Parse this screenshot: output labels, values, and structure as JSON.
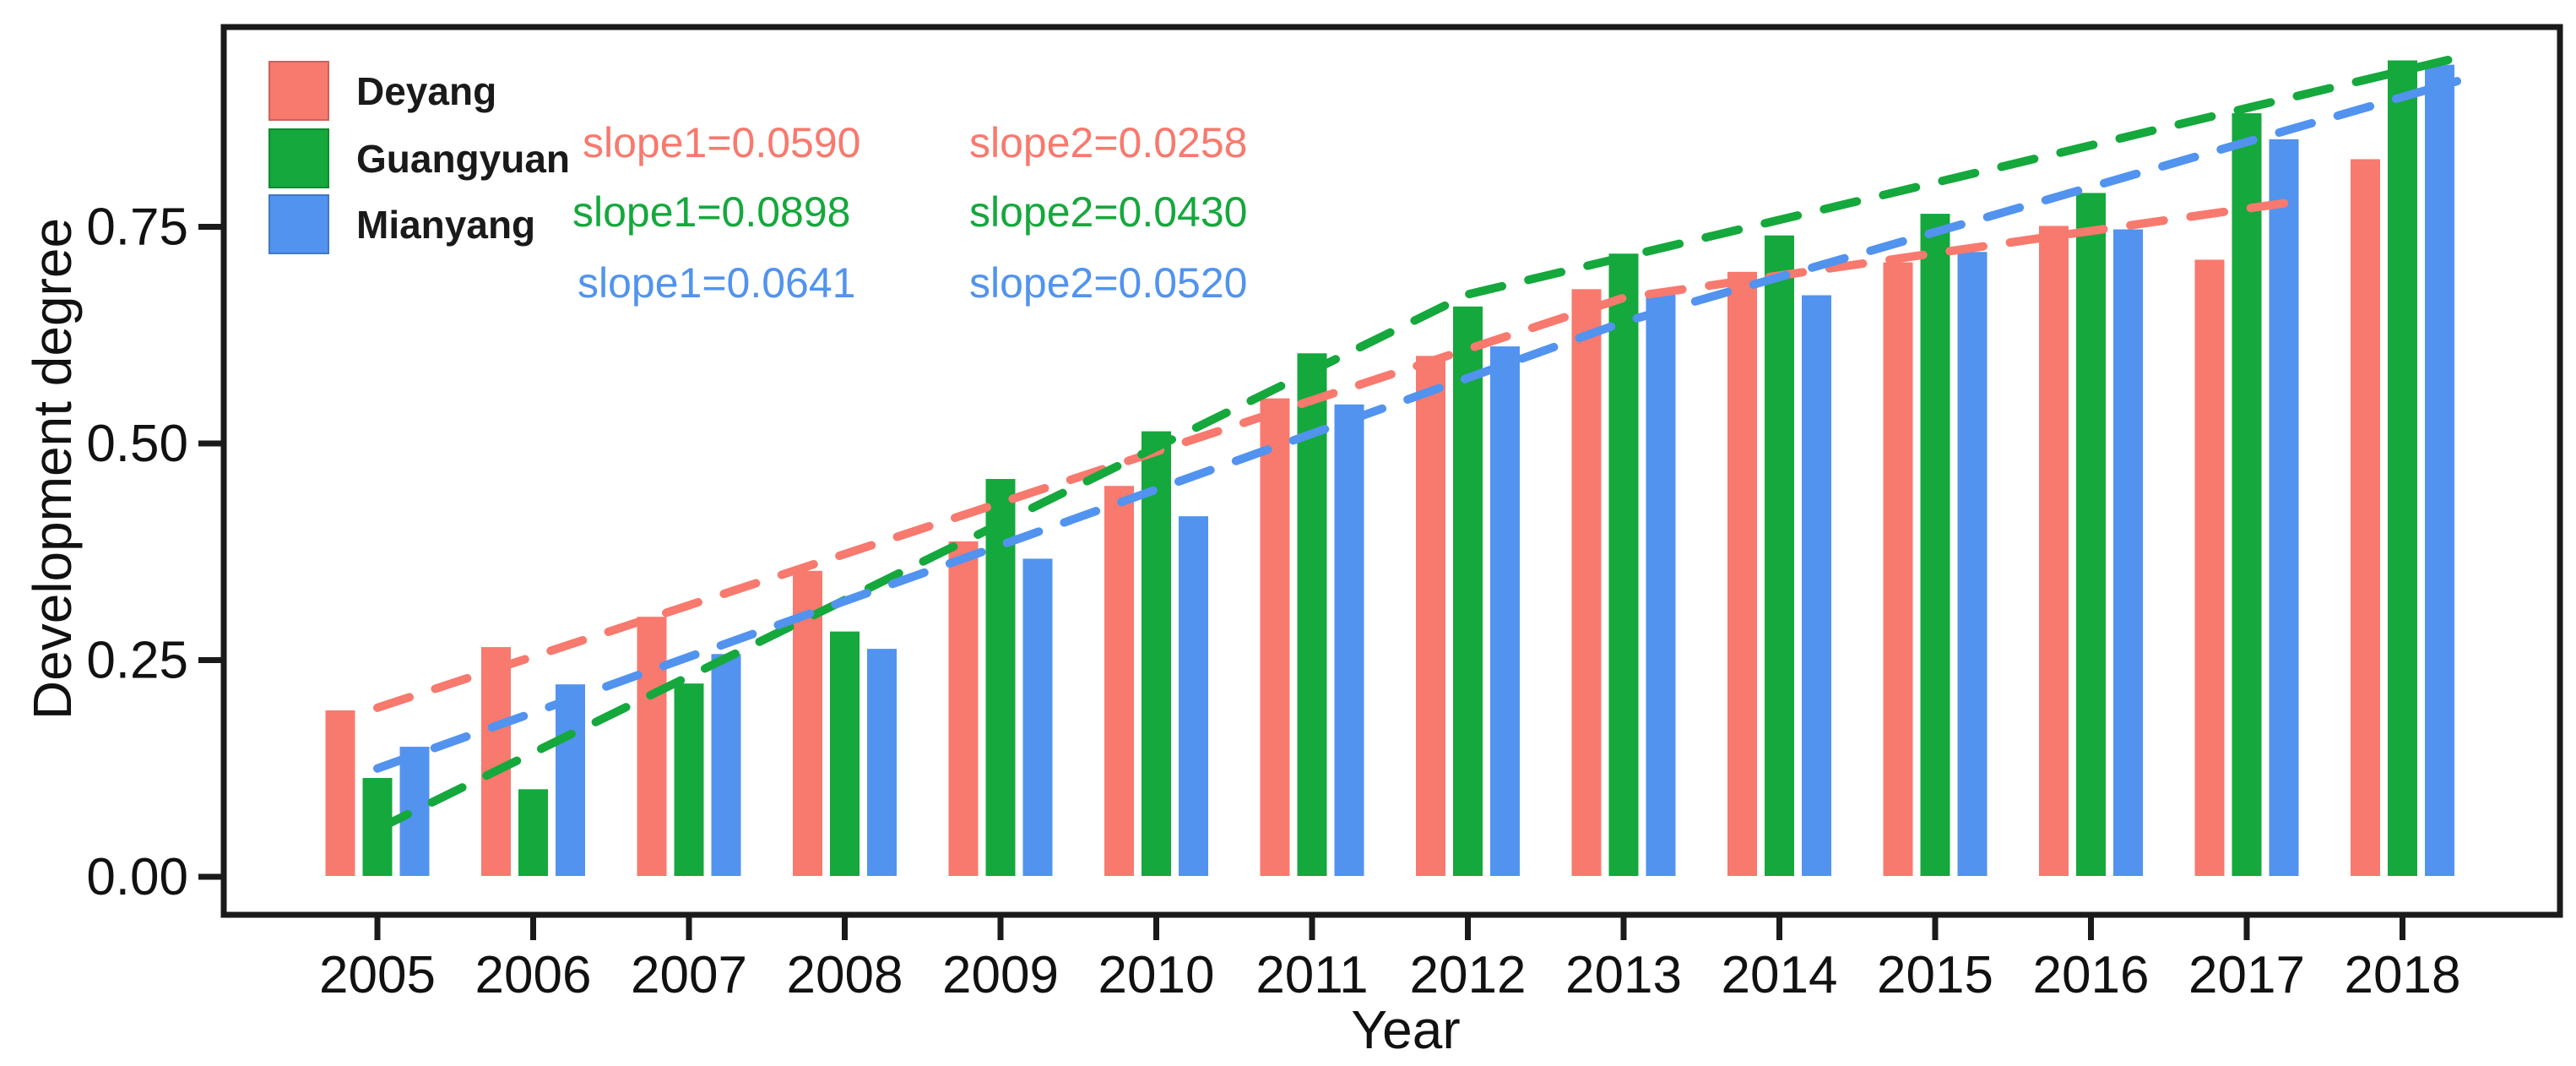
{
  "figure": {
    "background": "#ffffff",
    "axis_color": "#1a1a1a"
  },
  "chart_data": {
    "type": "bar",
    "title": "",
    "xlabel": "Year",
    "ylabel": "Development degree",
    "categories": [
      "2005",
      "2006",
      "2007",
      "2008",
      "2009",
      "2010",
      "2011",
      "2012",
      "2013",
      "2014",
      "2015",
      "2016",
      "2017",
      "2018"
    ],
    "y_ticks": [
      "0.00",
      "0.25",
      "0.50",
      "0.75"
    ],
    "y_tick_values": [
      0,
      0.25,
      0.5,
      0.75
    ],
    "ylim": [
      0,
      0.98
    ],
    "grid": false,
    "legend_position": "top-left-inside",
    "series": [
      {
        "name": "Deyang",
        "color": "#F8796E",
        "values": [
          0.193,
          0.266,
          0.301,
          0.354,
          0.388,
          0.452,
          0.553,
          0.602,
          0.679,
          0.699,
          0.71,
          0.752,
          0.713,
          0.829
        ],
        "slope1": "slope1=0.0590",
        "slope2": "slope2=0.0258",
        "trend": [
          [
            2005,
            0.195
          ],
          [
            2013,
            0.668
          ],
          [
            2017.35,
            0.78
          ]
        ]
      },
      {
        "name": "Guangyuan",
        "color": "#15A83C",
        "values": [
          0.115,
          0.102,
          0.224,
          0.284,
          0.46,
          0.515,
          0.605,
          0.659,
          0.72,
          0.741,
          0.766,
          0.79,
          0.882,
          0.943
        ],
        "slope1": "slope1=0.0898",
        "slope2": "slope2=0.0430",
        "trend": [
          [
            2005,
            0.055
          ],
          [
            2012,
            0.672
          ],
          [
            2018.35,
            0.945
          ]
        ]
      },
      {
        "name": "Mianyang",
        "color": "#5193EF",
        "values": [
          0.151,
          0.223,
          0.258,
          0.264,
          0.368,
          0.417,
          0.546,
          0.613,
          0.676,
          0.672,
          0.722,
          0.748,
          0.852,
          0.938
        ],
        "slope1": "slope1=0.0641",
        "slope2": "slope2=0.0520",
        "trend": [
          [
            2005,
            0.125
          ],
          [
            2013,
            0.64
          ],
          [
            2018.35,
            0.918
          ]
        ]
      }
    ]
  }
}
